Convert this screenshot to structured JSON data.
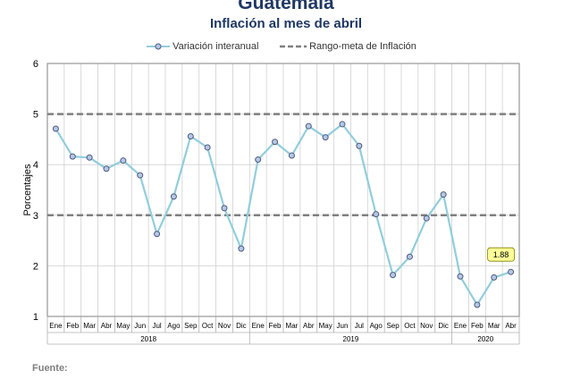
{
  "header": {
    "title": "Guatemala",
    "subtitle": "Inflación al mes de abril"
  },
  "legend": {
    "series_label": "Variación interanual",
    "range_label": "Rango-meta de Inflación"
  },
  "footer": {
    "source_label": "Fuente:"
  },
  "colors": {
    "series": "#92cddc",
    "marker_fill": "#b4c7e7",
    "marker_stroke": "#4f5b7c",
    "range_line": "#7f7f7f",
    "grid": "#d0d0d0",
    "callout_fill": "#ffff99",
    "title": "#1f3864"
  },
  "chart_data": {
    "type": "line",
    "title": "Inflación al mes de abril",
    "xlabel": "",
    "ylabel": "Porcentajes",
    "ylim": [
      1,
      6
    ],
    "yticks": [
      1,
      2,
      3,
      4,
      5,
      6
    ],
    "grid": true,
    "legend_position": "top",
    "categories": [
      "Ene",
      "Feb",
      "Mar",
      "Abr",
      "May",
      "Jun",
      "Jul",
      "Ago",
      "Sep",
      "Oct",
      "Nov",
      "Dic",
      "Ene",
      "Feb",
      "Mar",
      "Abr",
      "May",
      "Jun",
      "Jul",
      "Ago",
      "Sep",
      "Oct",
      "Nov",
      "Dic",
      "Ene",
      "Feb",
      "Mar",
      "Abr"
    ],
    "year_groups": [
      {
        "label": "2018",
        "count": 12
      },
      {
        "label": "2019",
        "count": 12
      },
      {
        "label": "2020",
        "count": 4
      }
    ],
    "series": [
      {
        "name": "Variación interanual",
        "values": [
          4.71,
          4.16,
          4.14,
          3.92,
          4.08,
          3.79,
          2.63,
          3.37,
          4.56,
          4.34,
          3.14,
          2.34,
          4.1,
          4.45,
          4.18,
          4.76,
          4.54,
          4.8,
          4.37,
          3.02,
          1.82,
          2.18,
          2.94,
          3.41,
          1.79,
          1.23,
          1.77,
          1.88
        ]
      }
    ],
    "target_range": {
      "name": "Rango-meta de Inflación",
      "values": [
        3,
        5
      ]
    },
    "annotation": {
      "label": "1.88",
      "index": 27
    }
  }
}
